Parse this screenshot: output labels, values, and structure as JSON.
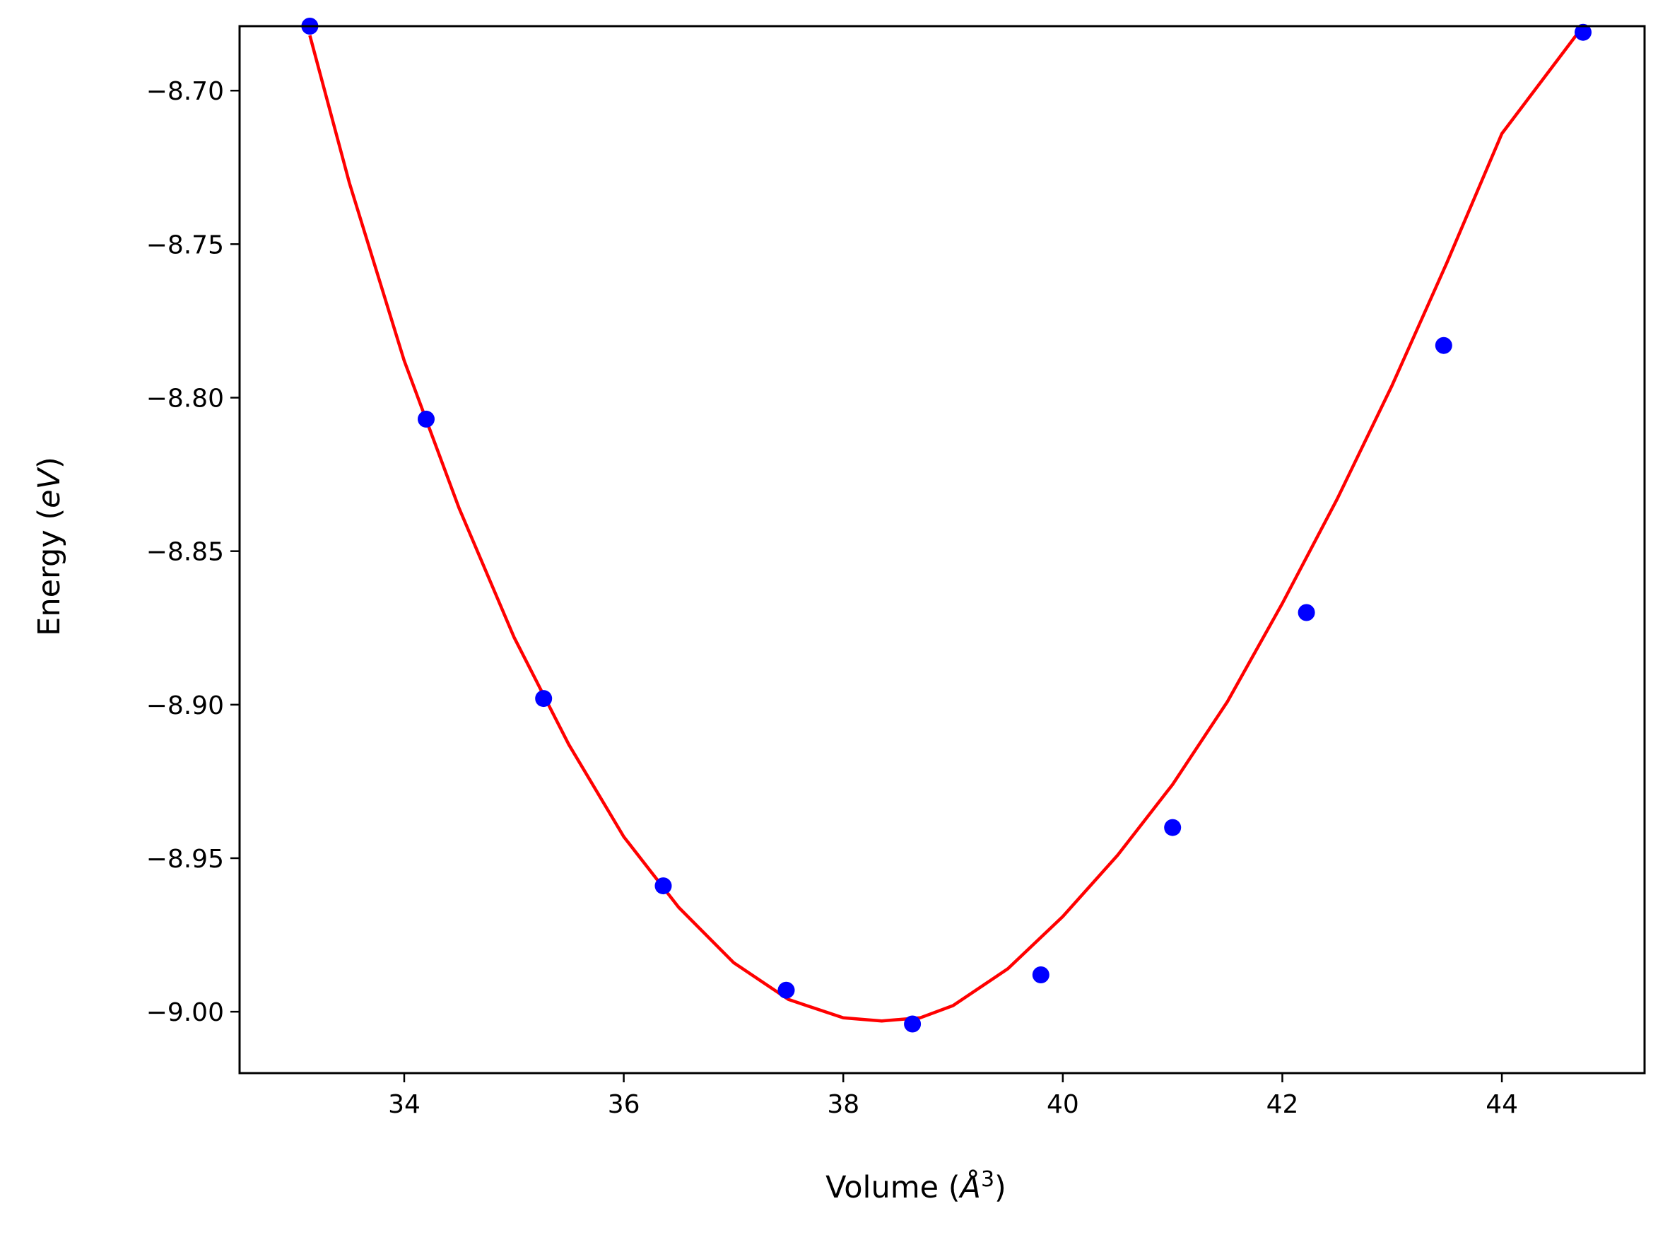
{
  "chart_data": {
    "type": "scatter",
    "xlabel": "Volume (Å³)",
    "xlabel_parts": {
      "prefix": "Volume (",
      "symbol": "Å",
      "exponent": "3",
      "suffix": ")"
    },
    "ylabel": "Energy (eV)",
    "ylabel_parts": {
      "prefix": "Energy (",
      "unit": "eV",
      "suffix": ")"
    },
    "xlim": [
      32.5,
      45.3
    ],
    "ylim": [
      -9.02,
      -8.679
    ],
    "xticks": [
      34,
      36,
      38,
      40,
      42,
      44
    ],
    "xtick_labels": [
      "34",
      "36",
      "38",
      "40",
      "42",
      "44"
    ],
    "yticks": [
      -8.7,
      -8.75,
      -8.8,
      -8.85,
      -8.9,
      -8.95,
      -9.0
    ],
    "ytick_labels": [
      "−8.70",
      "−8.75",
      "−8.80",
      "−8.85",
      "−8.90",
      "−8.95",
      "−9.00"
    ],
    "grid": false,
    "series": [
      {
        "kind": "points",
        "color": "#0000ff",
        "x": [
          33.14,
          34.2,
          35.27,
          36.36,
          37.48,
          38.63,
          39.8,
          41.0,
          42.22,
          43.47,
          44.74
        ],
        "y": [
          -8.679,
          -8.807,
          -8.898,
          -8.959,
          -8.993,
          -9.004,
          -8.988,
          -8.94,
          -8.87,
          -8.783,
          -8.681
        ]
      },
      {
        "kind": "fit-line",
        "color": "#ff0000",
        "x": [
          33.14,
          33.5,
          34.0,
          34.5,
          35.0,
          35.5,
          36.0,
          36.5,
          37.0,
          37.5,
          38.0,
          38.35,
          38.7,
          39.0,
          39.5,
          40.0,
          40.5,
          41.0,
          41.5,
          42.0,
          42.5,
          43.0,
          43.5,
          44.0,
          44.74
        ],
        "y": [
          -8.682,
          -8.73,
          -8.788,
          -8.836,
          -8.878,
          -8.913,
          -8.943,
          -8.966,
          -8.984,
          -8.996,
          -9.002,
          -9.003,
          -9.002,
          -8.998,
          -8.986,
          -8.969,
          -8.949,
          -8.926,
          -8.899,
          -8.867,
          -8.833,
          -8.796,
          -8.756,
          -8.714,
          -8.679
        ]
      }
    ]
  }
}
